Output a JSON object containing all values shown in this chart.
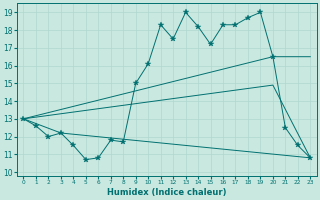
{
  "xlabel": "Humidex (Indice chaleur)",
  "xlim": [
    -0.5,
    23.5
  ],
  "ylim": [
    9.8,
    19.5
  ],
  "yticks": [
    10,
    11,
    12,
    13,
    14,
    15,
    16,
    17,
    18,
    19
  ],
  "xticks": [
    0,
    1,
    2,
    3,
    4,
    5,
    6,
    7,
    8,
    9,
    10,
    11,
    12,
    13,
    14,
    15,
    16,
    17,
    18,
    19,
    20,
    21,
    22,
    23
  ],
  "bg_color": "#c8e8e0",
  "line_color": "#007070",
  "grid_color": "#b0d8d0",
  "series": [
    {
      "x": [
        0,
        1,
        2,
        3,
        4,
        5,
        6,
        7,
        8,
        9,
        10,
        11,
        12,
        13,
        14,
        15,
        16,
        17,
        18,
        19,
        20,
        21,
        22,
        23
      ],
      "y": [
        13.0,
        12.6,
        12.0,
        12.2,
        11.5,
        10.7,
        10.8,
        11.8,
        11.7,
        15.0,
        16.1,
        18.3,
        17.5,
        19.0,
        18.2,
        17.2,
        18.3,
        18.3,
        18.7,
        19.0,
        16.5,
        12.5,
        11.5,
        10.8
      ],
      "marker": "star",
      "markersize": 4
    },
    {
      "x": [
        0,
        20,
        23
      ],
      "y": [
        13.0,
        16.5,
        16.5
      ],
      "marker": null
    },
    {
      "x": [
        0,
        20,
        23
      ],
      "y": [
        13.0,
        14.9,
        10.8
      ],
      "marker": null
    },
    {
      "x": [
        0,
        3,
        23
      ],
      "y": [
        13.0,
        12.2,
        10.8
      ],
      "marker": null
    }
  ]
}
